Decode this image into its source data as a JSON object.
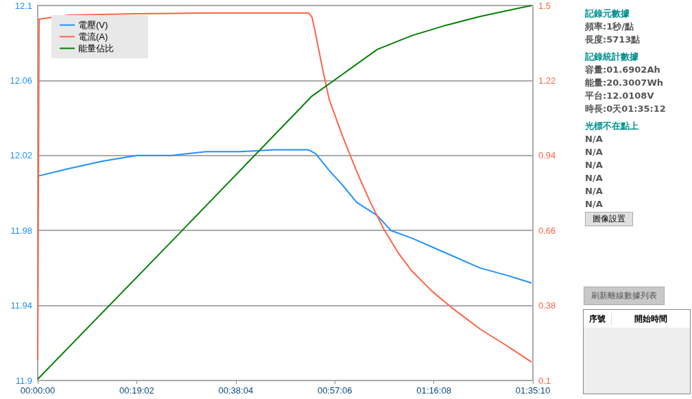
{
  "chart_data": {
    "type": "line",
    "xlim": [
      0,
      1.586111
    ],
    "xticks": [
      {
        "value": 0,
        "label": "00:00:00"
      },
      {
        "value": 0.317222,
        "label": "00:19:02"
      },
      {
        "value": 0.634444,
        "label": "00:38:04"
      },
      {
        "value": 0.951667,
        "label": "00:57:06"
      },
      {
        "value": 1.268889,
        "label": "01:16:08"
      },
      {
        "value": 1.586111,
        "label": "01:35:10"
      }
    ],
    "ylim": [
      11.9,
      12.1
    ],
    "yticks": [
      11.9,
      11.94,
      11.98,
      12.02,
      12.06,
      12.1
    ],
    "y2lim": [
      0.1,
      1.5
    ],
    "y2ticks": [
      0.1,
      0.38,
      0.66,
      0.94,
      1.22,
      1.5
    ],
    "grid": "y",
    "legend": "top left",
    "marker": "none",
    "line_style": "solid",
    "series": [
      {
        "name": "電壓(V)",
        "color": "#1e90ff",
        "x": [
          0,
          0.0989,
          0.2087,
          0.3185,
          0.4284,
          0.5382,
          0.6481,
          0.7579,
          0.8678,
          0.8902,
          0.9336,
          0.9776,
          1.0215,
          1.0874,
          1.1313,
          1.1973,
          1.3071,
          1.417,
          1.5048,
          1.5817
        ],
        "values": [
          12.009,
          12.013,
          12.017,
          12.02,
          12.02,
          12.022,
          12.022,
          12.023,
          12.023,
          12.021,
          12.012,
          12.004,
          11.995,
          11.988,
          11.98,
          11.976,
          11.968,
          11.96,
          11.956,
          11.952
        ]
      },
      {
        "name": "電流(A)",
        "color": "#ff6347",
        "axis": "y2",
        "x": [
          0,
          0.0044,
          0.0989,
          0.3185,
          0.5382,
          0.8678,
          0.8787,
          0.8902,
          0.9121,
          0.9336,
          0.9776,
          1.0215,
          1.0655,
          1.1094,
          1.1533,
          1.1973,
          1.2632,
          1.3291,
          1.417,
          1.5048,
          1.5817
        ],
        "values": [
          0.177,
          1.449,
          1.464,
          1.469,
          1.472,
          1.472,
          1.456,
          1.393,
          1.265,
          1.149,
          1.009,
          0.881,
          0.765,
          0.663,
          0.579,
          0.51,
          0.433,
          0.369,
          0.292,
          0.228,
          0.169
        ]
      },
      {
        "name": "能量佔比",
        "color": "#008000",
        "axis": "y2",
        "x": [
          0,
          0.4394,
          0.8787,
          0.9776,
          1.0874,
          1.1973,
          1.3071,
          1.417,
          1.5817
        ],
        "values": [
          0.105,
          0.632,
          1.162,
          1.244,
          1.336,
          1.387,
          1.426,
          1.459,
          1.5
        ]
      }
    ],
    "annotations": [
      "記錄元數據",
      "頻率:1秒/點",
      "長度:5713點",
      "記錄統計數據",
      "容量:01.6902Ah",
      "能量:20.3007Wh",
      "平台:12.0108V",
      "時長:0天01:35:12",
      "光標不在點上",
      "N/A",
      "N/A",
      "N/A",
      "N/A",
      "N/A",
      "N/A",
      "圖像設置",
      "刷新離線數據列表",
      "序號",
      "開始時間"
    ]
  }
}
